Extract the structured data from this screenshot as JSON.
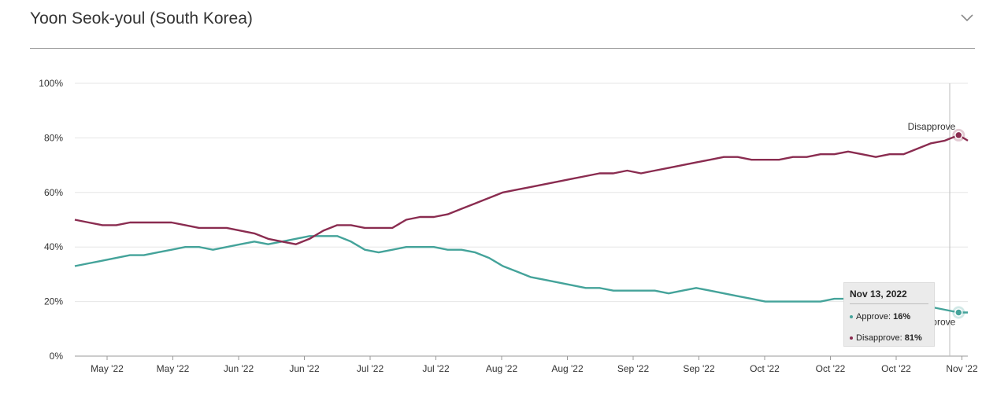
{
  "header": {
    "title": "Yoon Seok-youl (South Korea)",
    "toggle_icon": "chevron-down-icon"
  },
  "tooltip": {
    "date": "Nov 13, 2022",
    "approve_label": "Approve:",
    "approve_value": "16%",
    "disapprove_label": "Disapprove:",
    "disapprove_value": "81%"
  },
  "colors": {
    "approve": "#44a39a",
    "disapprove": "#8a2c50",
    "grid": "#e6e6e6",
    "axis": "#9a9a9a"
  },
  "chart_data": {
    "type": "line",
    "title": "Yoon Seok-youl (South Korea)",
    "xlabel": "",
    "ylabel": "",
    "ylim": [
      0,
      100
    ],
    "y_ticks": [
      "0%",
      "20%",
      "40%",
      "60%",
      "80%",
      "100%"
    ],
    "x_ticks": [
      "May '22",
      "May '22",
      "Jun '22",
      "Jun '22",
      "Jul '22",
      "Jul '22",
      "Aug '22",
      "Aug '22",
      "Sep '22",
      "Sep '22",
      "Oct '22",
      "Oct '22",
      "Oct '22",
      "Nov '22"
    ],
    "x_start": "2022-05-05",
    "x_end": "2022-11-15",
    "grid": true,
    "series": [
      {
        "name": "Approve",
        "end_label": "Approve",
        "color": "#44a39a",
        "points": [
          [
            "2022-05-05",
            33
          ],
          [
            "2022-05-08",
            34
          ],
          [
            "2022-05-11",
            35
          ],
          [
            "2022-05-14",
            36
          ],
          [
            "2022-05-17",
            37
          ],
          [
            "2022-05-20",
            37
          ],
          [
            "2022-05-23",
            38
          ],
          [
            "2022-05-26",
            39
          ],
          [
            "2022-05-29",
            40
          ],
          [
            "2022-06-01",
            40
          ],
          [
            "2022-06-04",
            39
          ],
          [
            "2022-06-07",
            40
          ],
          [
            "2022-06-10",
            41
          ],
          [
            "2022-06-13",
            42
          ],
          [
            "2022-06-16",
            41
          ],
          [
            "2022-06-19",
            42
          ],
          [
            "2022-06-22",
            43
          ],
          [
            "2022-06-25",
            44
          ],
          [
            "2022-06-28",
            44
          ],
          [
            "2022-07-01",
            44
          ],
          [
            "2022-07-04",
            42
          ],
          [
            "2022-07-07",
            39
          ],
          [
            "2022-07-10",
            38
          ],
          [
            "2022-07-13",
            39
          ],
          [
            "2022-07-16",
            40
          ],
          [
            "2022-07-19",
            40
          ],
          [
            "2022-07-22",
            40
          ],
          [
            "2022-07-25",
            39
          ],
          [
            "2022-07-28",
            39
          ],
          [
            "2022-07-31",
            38
          ],
          [
            "2022-08-03",
            36
          ],
          [
            "2022-08-06",
            33
          ],
          [
            "2022-08-09",
            31
          ],
          [
            "2022-08-12",
            29
          ],
          [
            "2022-08-15",
            28
          ],
          [
            "2022-08-18",
            27
          ],
          [
            "2022-08-21",
            26
          ],
          [
            "2022-08-24",
            25
          ],
          [
            "2022-08-27",
            25
          ],
          [
            "2022-08-30",
            24
          ],
          [
            "2022-09-02",
            24
          ],
          [
            "2022-09-05",
            24
          ],
          [
            "2022-09-08",
            24
          ],
          [
            "2022-09-11",
            23
          ],
          [
            "2022-09-14",
            24
          ],
          [
            "2022-09-17",
            25
          ],
          [
            "2022-09-20",
            24
          ],
          [
            "2022-09-23",
            23
          ],
          [
            "2022-09-26",
            22
          ],
          [
            "2022-09-29",
            21
          ],
          [
            "2022-10-02",
            20
          ],
          [
            "2022-10-05",
            20
          ],
          [
            "2022-10-08",
            20
          ],
          [
            "2022-10-11",
            20
          ],
          [
            "2022-10-14",
            20
          ],
          [
            "2022-10-17",
            21
          ],
          [
            "2022-10-20",
            21
          ],
          [
            "2022-10-23",
            20
          ],
          [
            "2022-10-26",
            19
          ],
          [
            "2022-10-29",
            20
          ],
          [
            "2022-11-01",
            20
          ],
          [
            "2022-11-04",
            19
          ],
          [
            "2022-11-07",
            18
          ],
          [
            "2022-11-10",
            17
          ],
          [
            "2022-11-13",
            16
          ],
          [
            "2022-11-15",
            16
          ]
        ]
      },
      {
        "name": "Disapprove",
        "end_label": "Disapprove",
        "color": "#8a2c50",
        "points": [
          [
            "2022-05-05",
            50
          ],
          [
            "2022-05-08",
            49
          ],
          [
            "2022-05-11",
            48
          ],
          [
            "2022-05-14",
            48
          ],
          [
            "2022-05-17",
            49
          ],
          [
            "2022-05-20",
            49
          ],
          [
            "2022-05-23",
            49
          ],
          [
            "2022-05-26",
            49
          ],
          [
            "2022-05-29",
            48
          ],
          [
            "2022-06-01",
            47
          ],
          [
            "2022-06-04",
            47
          ],
          [
            "2022-06-07",
            47
          ],
          [
            "2022-06-10",
            46
          ],
          [
            "2022-06-13",
            45
          ],
          [
            "2022-06-16",
            43
          ],
          [
            "2022-06-19",
            42
          ],
          [
            "2022-06-22",
            41
          ],
          [
            "2022-06-25",
            43
          ],
          [
            "2022-06-28",
            46
          ],
          [
            "2022-07-01",
            48
          ],
          [
            "2022-07-04",
            48
          ],
          [
            "2022-07-07",
            47
          ],
          [
            "2022-07-10",
            47
          ],
          [
            "2022-07-13",
            47
          ],
          [
            "2022-07-16",
            50
          ],
          [
            "2022-07-19",
            51
          ],
          [
            "2022-07-22",
            51
          ],
          [
            "2022-07-25",
            52
          ],
          [
            "2022-07-28",
            54
          ],
          [
            "2022-07-31",
            56
          ],
          [
            "2022-08-03",
            58
          ],
          [
            "2022-08-06",
            60
          ],
          [
            "2022-08-09",
            61
          ],
          [
            "2022-08-12",
            62
          ],
          [
            "2022-08-15",
            63
          ],
          [
            "2022-08-18",
            64
          ],
          [
            "2022-08-21",
            65
          ],
          [
            "2022-08-24",
            66
          ],
          [
            "2022-08-27",
            67
          ],
          [
            "2022-08-30",
            67
          ],
          [
            "2022-09-02",
            68
          ],
          [
            "2022-09-05",
            67
          ],
          [
            "2022-09-08",
            68
          ],
          [
            "2022-09-11",
            69
          ],
          [
            "2022-09-14",
            70
          ],
          [
            "2022-09-17",
            71
          ],
          [
            "2022-09-20",
            72
          ],
          [
            "2022-09-23",
            73
          ],
          [
            "2022-09-26",
            73
          ],
          [
            "2022-09-29",
            72
          ],
          [
            "2022-10-02",
            72
          ],
          [
            "2022-10-05",
            72
          ],
          [
            "2022-10-08",
            73
          ],
          [
            "2022-10-11",
            73
          ],
          [
            "2022-10-14",
            74
          ],
          [
            "2022-10-17",
            74
          ],
          [
            "2022-10-20",
            75
          ],
          [
            "2022-10-23",
            74
          ],
          [
            "2022-10-26",
            73
          ],
          [
            "2022-10-29",
            74
          ],
          [
            "2022-11-01",
            74
          ],
          [
            "2022-11-04",
            76
          ],
          [
            "2022-11-07",
            78
          ],
          [
            "2022-11-10",
            79
          ],
          [
            "2022-11-13",
            81
          ],
          [
            "2022-11-15",
            79
          ]
        ]
      }
    ]
  }
}
